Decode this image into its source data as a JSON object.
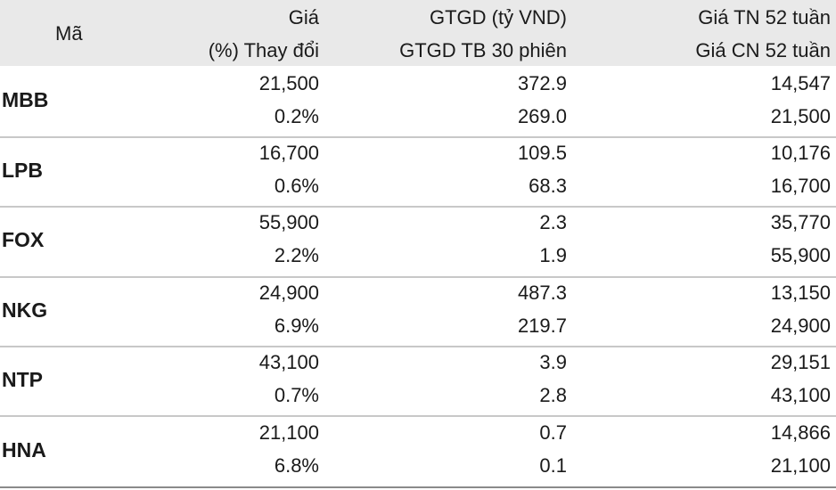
{
  "headers": {
    "ma": "Mã",
    "gia": "Giá",
    "thay_doi": "(%) Thay đổi",
    "gtgd": "GTGD (tỷ VND)",
    "gtgd_tb": "GTGD TB 30 phiên",
    "gia_tn": "Giá TN 52 tuần",
    "gia_cn": "Giá CN 52 tuần"
  },
  "rows": [
    {
      "code": "MBB",
      "price": "21,500",
      "change": "0.2%",
      "gtgd": "372.9",
      "gtgd_tb": "269.0",
      "low52": "14,547",
      "high52": "21,500"
    },
    {
      "code": "LPB",
      "price": "16,700",
      "change": "0.6%",
      "gtgd": "109.5",
      "gtgd_tb": "68.3",
      "low52": "10,176",
      "high52": "16,700"
    },
    {
      "code": "FOX",
      "price": "55,900",
      "change": "2.2%",
      "gtgd": "2.3",
      "gtgd_tb": "1.9",
      "low52": "35,770",
      "high52": "55,900"
    },
    {
      "code": "NKG",
      "price": "24,900",
      "change": "6.9%",
      "gtgd": "487.3",
      "gtgd_tb": "219.7",
      "low52": "13,150",
      "high52": "24,900"
    },
    {
      "code": "NTP",
      "price": "43,100",
      "change": "0.7%",
      "gtgd": "3.9",
      "gtgd_tb": "2.8",
      "low52": "29,151",
      "high52": "43,100"
    },
    {
      "code": "HNA",
      "price": "21,100",
      "change": "6.8%",
      "gtgd": "0.7",
      "gtgd_tb": "0.1",
      "low52": "14,866",
      "high52": "21,100"
    }
  ]
}
